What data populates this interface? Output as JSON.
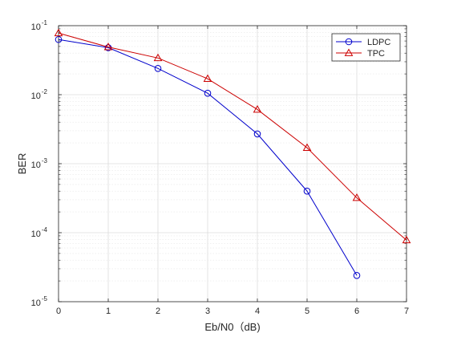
{
  "chart_data": {
    "type": "line",
    "xlabel": "Eb/N0（dB)",
    "ylabel": "BER",
    "xlim": [
      0,
      7
    ],
    "ylim": [
      1e-05,
      0.1
    ],
    "yscale": "log",
    "grid": true,
    "minor_grid": true,
    "legend_position": "top-right",
    "x_ticks": [
      0,
      1,
      2,
      3,
      4,
      5,
      6,
      7
    ],
    "y_ticks": [
      {
        "value": 1e-05,
        "base": "10",
        "exp": "-5"
      },
      {
        "value": 0.0001,
        "base": "10",
        "exp": "-4"
      },
      {
        "value": 0.001,
        "base": "10",
        "exp": "-3"
      },
      {
        "value": 0.01,
        "base": "10",
        "exp": "-2"
      },
      {
        "value": 0.1,
        "base": "10",
        "exp": "-1"
      }
    ],
    "series": [
      {
        "name": "LDPC",
        "color": "#0000cc",
        "marker": "circle",
        "x": [
          0,
          1,
          2,
          3,
          4,
          5,
          6
        ],
        "y": [
          0.063,
          0.048,
          0.024,
          0.0105,
          0.0027,
          0.0004,
          2.4e-05
        ]
      },
      {
        "name": "TPC",
        "color": "#cc0000",
        "marker": "triangle",
        "x": [
          0,
          1,
          2,
          3,
          4,
          5,
          6,
          7
        ],
        "y": [
          0.078,
          0.049,
          0.034,
          0.017,
          0.0061,
          0.0017,
          0.00032,
          7.8e-05
        ]
      }
    ]
  }
}
